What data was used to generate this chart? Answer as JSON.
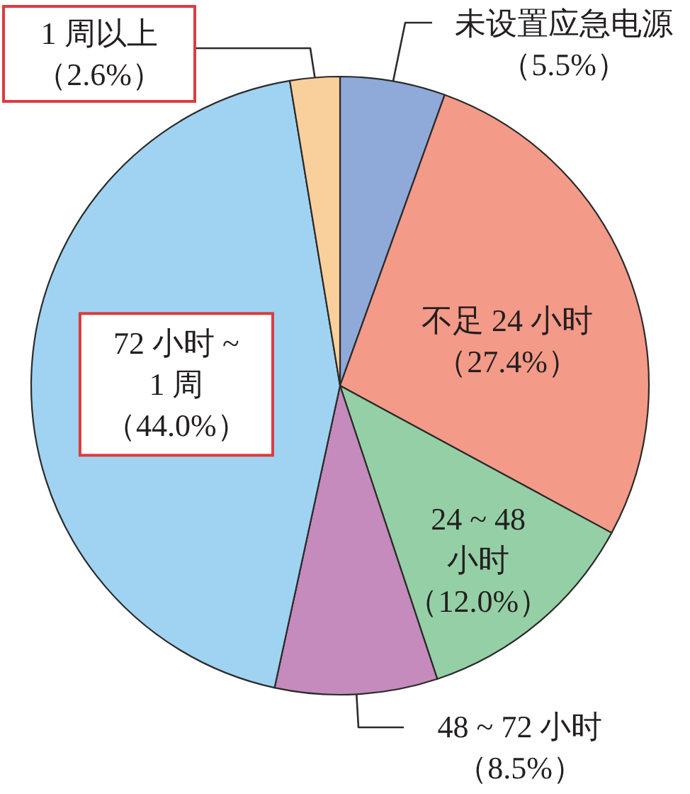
{
  "chart_data": {
    "type": "pie",
    "categories": [
      "未设置应急电源",
      "不足 24 小时",
      "24 ~ 48\n小时",
      "48 ~ 72 小时",
      "72 小时 ~\n1 周",
      "1 周以上"
    ],
    "values": [
      5.5,
      27.4,
      12.0,
      8.5,
      44.0,
      2.6
    ],
    "value_labels": [
      "（5.5%）",
      "（27.4%）",
      "（12.0%）",
      "（8.5%）",
      "（44.0%）",
      "（2.6%）"
    ],
    "colors": [
      "#8faad8",
      "#f49a88",
      "#95cfa6",
      "#c48bbc",
      "#9fd3f1",
      "#f9d09c"
    ]
  }
}
